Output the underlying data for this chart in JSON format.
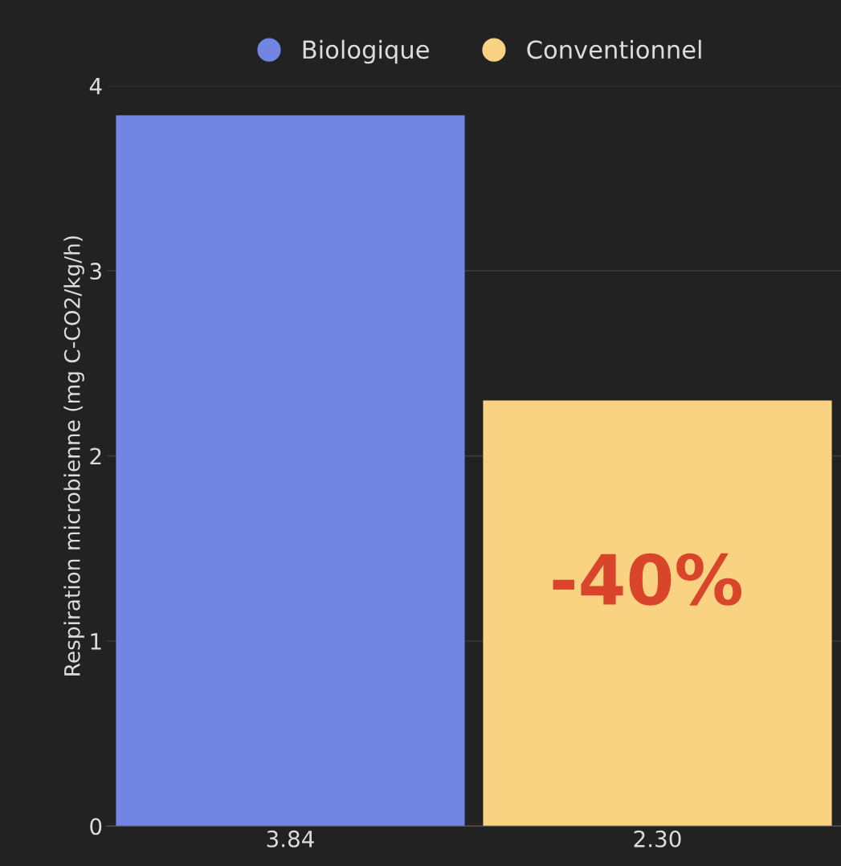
{
  "chart_data": {
    "type": "bar",
    "ylabel": "Respiration microbienne (mg C-CO2/kg/h)",
    "categories": [
      "3.84",
      "2.30"
    ],
    "series": [
      {
        "name": "Biologique",
        "color": "#7285e3",
        "values": [
          3.84,
          null
        ]
      },
      {
        "name": "Conventionnel",
        "color": "#f9d382",
        "values": [
          null,
          2.3
        ]
      }
    ],
    "ylim": [
      0,
      4
    ],
    "yticks": [
      0,
      1,
      2,
      3,
      4
    ],
    "grid": "y",
    "legend": "top",
    "annotations": [
      "-40%"
    ]
  }
}
